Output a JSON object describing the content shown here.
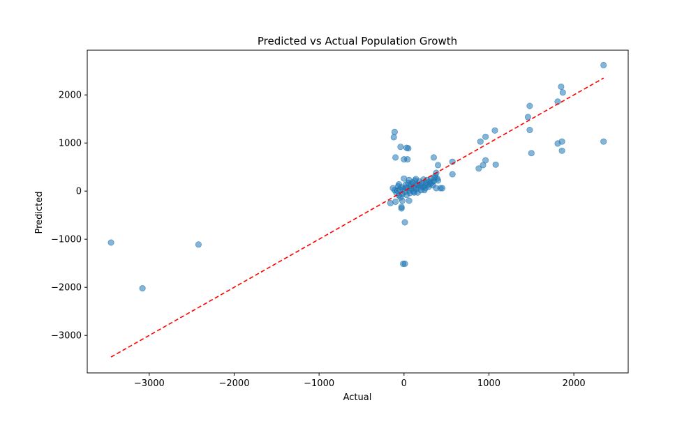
{
  "chart_data": {
    "type": "scatter",
    "title": "Predicted vs Actual Population Growth",
    "xlabel": "Actual",
    "ylabel": "Predicted",
    "xlim": [
      -3730,
      2640
    ],
    "ylim": [
      -3780,
      2930
    ],
    "xticks": [
      -3000,
      -2000,
      -1000,
      0,
      1000,
      2000
    ],
    "yticks": [
      -3000,
      -2000,
      -1000,
      0,
      1000,
      2000
    ],
    "xtick_labels": [
      "−3000",
      "−2000",
      "−1000",
      "0",
      "1000",
      "2000"
    ],
    "ytick_labels": [
      "−3000",
      "−2000",
      "−1000",
      "0",
      "1000",
      "2000"
    ],
    "grid": false,
    "marker_color": "#1f77b4",
    "marker_alpha": 0.55,
    "reference_line": {
      "style": "dashed",
      "color": "#ff0000",
      "from": [
        -3450,
        -3450
      ],
      "to": [
        2350,
        2350
      ]
    },
    "points": [
      [
        -3450,
        -1070
      ],
      [
        -3080,
        -2020
      ],
      [
        -2420,
        -1110
      ],
      [
        2350,
        2620
      ],
      [
        2350,
        1030
      ],
      [
        1850,
        2170
      ],
      [
        1870,
        2050
      ],
      [
        1810,
        1860
      ],
      [
        1860,
        1030
      ],
      [
        1810,
        990
      ],
      [
        1860,
        840
      ],
      [
        1480,
        1770
      ],
      [
        1460,
        1540
      ],
      [
        1480,
        1270
      ],
      [
        1500,
        790
      ],
      [
        1070,
        1260
      ],
      [
        960,
        1130
      ],
      [
        900,
        1030
      ],
      [
        960,
        640
      ],
      [
        930,
        540
      ],
      [
        880,
        470
      ],
      [
        1080,
        550
      ],
      [
        -110,
        1230
      ],
      [
        -120,
        1120
      ],
      [
        -40,
        920
      ],
      [
        30,
        900
      ],
      [
        50,
        890
      ],
      [
        -100,
        700
      ],
      [
        0,
        660
      ],
      [
        40,
        660
      ],
      [
        350,
        700
      ],
      [
        400,
        540
      ],
      [
        570,
        610
      ],
      [
        570,
        350
      ],
      [
        10,
        -650
      ],
      [
        -10,
        -1510
      ],
      [
        10,
        -1510
      ],
      [
        -30,
        -330
      ],
      [
        -30,
        -360
      ],
      [
        -160,
        -250
      ],
      [
        -100,
        -220
      ],
      [
        -20,
        -200
      ],
      [
        60,
        -200
      ],
      [
        -130,
        60
      ],
      [
        -110,
        20
      ],
      [
        -90,
        -40
      ],
      [
        -70,
        100
      ],
      [
        -60,
        -90
      ],
      [
        -50,
        30
      ],
      [
        -40,
        -130
      ],
      [
        -30,
        80
      ],
      [
        -20,
        -60
      ],
      [
        -10,
        40
      ],
      [
        0,
        260
      ],
      [
        10,
        -20
      ],
      [
        20,
        130
      ],
      [
        30,
        -80
      ],
      [
        40,
        60
      ],
      [
        50,
        170
      ],
      [
        60,
        10
      ],
      [
        70,
        -40
      ],
      [
        80,
        110
      ],
      [
        90,
        50
      ],
      [
        100,
        180
      ],
      [
        110,
        -10
      ],
      [
        120,
        90
      ],
      [
        130,
        220
      ],
      [
        140,
        40
      ],
      [
        150,
        140
      ],
      [
        160,
        -30
      ],
      [
        170,
        70
      ],
      [
        180,
        200
      ],
      [
        190,
        120
      ],
      [
        200,
        20
      ],
      [
        210,
        160
      ],
      [
        220,
        80
      ],
      [
        230,
        240
      ],
      [
        240,
        110
      ],
      [
        250,
        60
      ],
      [
        260,
        170
      ],
      [
        270,
        230
      ],
      [
        280,
        130
      ],
      [
        290,
        90
      ],
      [
        300,
        200
      ],
      [
        310,
        150
      ],
      [
        320,
        250
      ],
      [
        330,
        180
      ],
      [
        340,
        120
      ],
      [
        350,
        210
      ],
      [
        360,
        280
      ],
      [
        370,
        320
      ],
      [
        380,
        380
      ],
      [
        390,
        260
      ],
      [
        400,
        220
      ],
      [
        380,
        60
      ],
      [
        430,
        60
      ],
      [
        450,
        60
      ],
      [
        240,
        20
      ],
      [
        160,
        120
      ],
      [
        120,
        -30
      ],
      [
        80,
        150
      ],
      [
        20,
        70
      ],
      [
        -60,
        140
      ],
      [
        -80,
        10
      ],
      [
        60,
        230
      ],
      [
        140,
        250
      ]
    ]
  }
}
